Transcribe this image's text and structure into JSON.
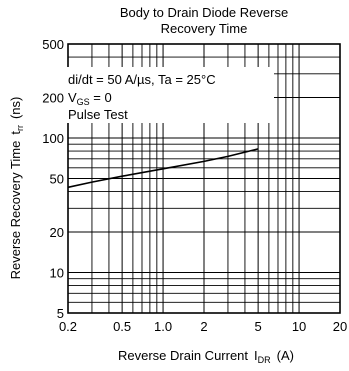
{
  "chart_data": {
    "type": "line",
    "title_line1": "Body to  Drain Diode Reverse",
    "title_line2": "Recovery Time",
    "xlabel": "Reverse Drain Current",
    "xlabel_sym": "I",
    "xlabel_sub": "DR",
    "xlabel_unit": "(A)",
    "ylabel": "Reverse Recovery Time",
    "ylabel_sym": "t",
    "ylabel_sub": "rr",
    "ylabel_unit": "(ns)",
    "x_scale": "log",
    "y_scale": "log",
    "xlim": [
      0.2,
      20
    ],
    "ylim": [
      5,
      500
    ],
    "grid": true,
    "x_ticks": [
      {
        "value": 0.2,
        "label": "0.2"
      },
      {
        "value": 0.5,
        "label": "0.5"
      },
      {
        "value": 1,
        "label": "1.0"
      },
      {
        "value": 2,
        "label": "2"
      },
      {
        "value": 5,
        "label": "5"
      },
      {
        "value": 10,
        "label": "10"
      },
      {
        "value": 20,
        "label": "20"
      }
    ],
    "y_ticks": [
      {
        "value": 5,
        "label": "5"
      },
      {
        "value": 10,
        "label": "10"
      },
      {
        "value": 20,
        "label": "20"
      },
      {
        "value": 50,
        "label": "50"
      },
      {
        "value": 100,
        "label": "100"
      },
      {
        "value": 200,
        "label": "200"
      },
      {
        "value": 500,
        "label": "500"
      }
    ],
    "x_minor_grid": [
      0.3,
      0.4,
      0.6,
      0.7,
      0.8,
      0.9,
      3,
      4,
      6,
      7,
      8,
      9
    ],
    "y_minor_grid": [
      6,
      7,
      8,
      9,
      30,
      40,
      60,
      70,
      80,
      90,
      300,
      400
    ],
    "annotations": {
      "line1": "di/dt = 50 A/µs, Ta = 25°C",
      "line2_sym": "V",
      "line2_sub": "GS",
      "line2_rest": " = 0",
      "line3": "Pulse Test"
    },
    "series": [
      {
        "x": [
          0.2,
          0.3,
          0.5,
          1.0,
          2.0,
          3.0,
          5.0
        ],
        "y": [
          43,
          47,
          52,
          59,
          67,
          73,
          83
        ]
      }
    ]
  }
}
